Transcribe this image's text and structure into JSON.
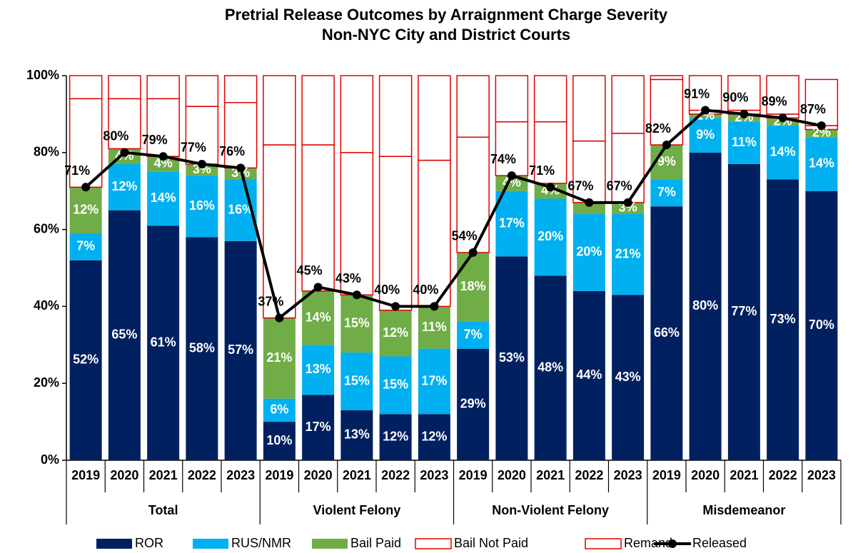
{
  "chart_data": {
    "type": "stacked-bar-line",
    "title": "Pretrial Release Outcomes by Arraignment Charge Severity",
    "subtitle": "Non-NYC City and District Courts",
    "categories": [
      "2019",
      "2020",
      "2021",
      "2022",
      "2023",
      "2019",
      "2020",
      "2021",
      "2022",
      "2023",
      "2019",
      "2020",
      "2021",
      "2022",
      "2023",
      "2019",
      "2020",
      "2021",
      "2022",
      "2023"
    ],
    "groups": [
      "Total",
      "Violent Felony",
      "Non-Violent Felony",
      "Misdemeanor"
    ],
    "ylim": [
      0,
      100
    ],
    "yticks": [
      {
        "value": 0,
        "label": "0%"
      },
      {
        "value": 20,
        "label": "20%"
      },
      {
        "value": 40,
        "label": "40%"
      },
      {
        "value": 60,
        "label": "60%"
      },
      {
        "value": 80,
        "label": "80%"
      },
      {
        "value": 100,
        "label": "100%"
      }
    ],
    "grid": false,
    "legend": "bottom",
    "series": [
      {
        "name": "ROR",
        "kind": "bar",
        "color": "#002060",
        "fill": true,
        "values": [
          52,
          65,
          61,
          58,
          57,
          10,
          17,
          13,
          12,
          12,
          29,
          53,
          48,
          44,
          43,
          66,
          80,
          77,
          73,
          70
        ],
        "value_labels": [
          "52%",
          "65%",
          "61%",
          "58%",
          "57%",
          "10%",
          "17%",
          "13%",
          "12%",
          "12%",
          "29%",
          "53%",
          "48%",
          "44%",
          "43%",
          "66%",
          "80%",
          "77%",
          "73%",
          "70%"
        ]
      },
      {
        "name": "RUS/NMR",
        "kind": "bar",
        "color": "#00b0f0",
        "fill": true,
        "values": [
          7,
          12,
          14,
          16,
          16,
          6,
          13,
          15,
          15,
          17,
          7,
          17,
          20,
          20,
          21,
          7,
          9,
          11,
          14,
          14
        ],
        "value_labels": [
          "7%",
          "12%",
          "14%",
          "16%",
          "16%",
          "6%",
          "13%",
          "15%",
          "15%",
          "17%",
          "7%",
          "17%",
          "20%",
          "20%",
          "21%",
          "7%",
          "9%",
          "11%",
          "14%",
          "14%"
        ]
      },
      {
        "name": "Bail Paid",
        "kind": "bar",
        "color": "#70ad47",
        "fill": true,
        "values": [
          12,
          4,
          4,
          3,
          3,
          21,
          14,
          15,
          12,
          11,
          18,
          4,
          4,
          3,
          3,
          9,
          1,
          2,
          2,
          2
        ],
        "value_labels": [
          "12%",
          "4%",
          "4%",
          "3%",
          "3%",
          "21%",
          "14%",
          "15%",
          "12%",
          "11%",
          "18%",
          "4%",
          "4%",
          null,
          "3%",
          "9%",
          "1%",
          "2%",
          "2%",
          "2%"
        ]
      },
      {
        "name": "Bail Not Paid",
        "kind": "bar",
        "color": "#e00000",
        "fill": false,
        "values": [
          23,
          13,
          15,
          15,
          17,
          45,
          38,
          37,
          40,
          38,
          30,
          14,
          16,
          16,
          18,
          17,
          1,
          1,
          1,
          1
        ]
      },
      {
        "name": "Remand",
        "kind": "bar",
        "color": "#e00000",
        "fill": false,
        "values": [
          6,
          6,
          6,
          8,
          7,
          18,
          18,
          20,
          21,
          22,
          16,
          12,
          12,
          17,
          15,
          1,
          9,
          9,
          10,
          12
        ]
      },
      {
        "name": "Released",
        "kind": "line",
        "color": "#000000",
        "values": [
          71,
          80,
          79,
          77,
          76,
          37,
          45,
          43,
          40,
          40,
          54,
          74,
          71,
          67,
          67,
          82,
          91,
          90,
          89,
          87
        ],
        "value_labels": [
          "71%",
          "80%",
          "79%",
          "77%",
          "76%",
          "37%",
          "45%",
          "43%",
          "40%",
          "40%",
          "54%",
          "74%",
          "71%",
          "67%",
          "67%",
          "82%",
          "91%",
          "90%",
          "89%",
          "87%"
        ]
      }
    ]
  }
}
